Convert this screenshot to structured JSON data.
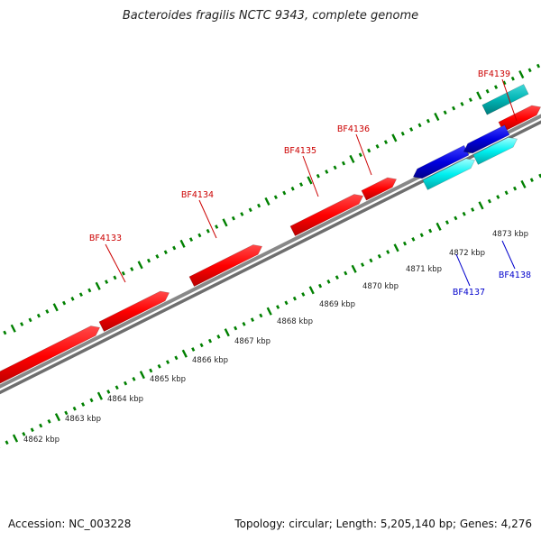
{
  "title": "Bacteroides fragilis NCTC 9343, complete genome",
  "footer": {
    "accession_label": "Accession:",
    "accession": "NC_003228",
    "topology_label": "Topology:",
    "topology": "circular",
    "length_label": "Length:",
    "length": "5,205,140 bp",
    "genes_label": "Genes:",
    "genes": "4,276"
  },
  "scale": {
    "unit": "kbp",
    "ticks": [
      "4862 kbp",
      "4863 kbp",
      "4864 kbp",
      "4865 kbp",
      "4866 kbp",
      "4867 kbp",
      "4868 kbp",
      "4869 kbp",
      "4870 kbp",
      "4871 kbp",
      "4872 kbp",
      "4873 kbp"
    ]
  },
  "genes": [
    {
      "name": "BF4133",
      "strand": "forward",
      "color": "#ff0000"
    },
    {
      "name": "BF4134",
      "strand": "forward",
      "color": "#ff0000"
    },
    {
      "name": "BF4135",
      "strand": "forward",
      "color": "#ff0000"
    },
    {
      "name": "BF4136",
      "strand": "forward",
      "color": "#ff0000"
    },
    {
      "name": "BF4137",
      "strand": "reverse",
      "color": "#0000dd"
    },
    {
      "name": "BF4138",
      "strand": "reverse",
      "color": "#0000dd"
    },
    {
      "name": "BF4139",
      "strand": "forward",
      "color": "#ff0000"
    }
  ],
  "colors": {
    "forward_gene": "#ff0000",
    "reverse_gene": "#0000dd",
    "forward_rna": "#00cccc",
    "reverse_rna": "#00ffff",
    "backbone": "#888888",
    "scale_ticks": "#008000",
    "forward_label": "#cc0000",
    "reverse_label": "#0000cc"
  }
}
